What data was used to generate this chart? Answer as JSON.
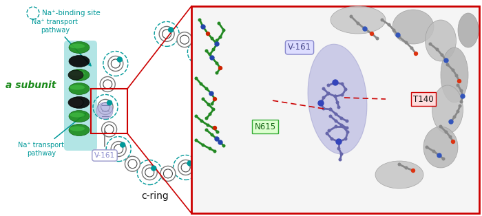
{
  "fig_width": 7.0,
  "fig_height": 3.14,
  "dpi": 100,
  "bg_color": "#ffffff",
  "teal_color": "#009999",
  "green_color": "#1a8a1a",
  "black_color": "#111111",
  "red_color": "#cc0000",
  "legend_text": "Na⁺-binding site",
  "na_transport_upper_text": "Na⁺ transport\npathway",
  "na_transport_lower_text": "Na⁺ transport\npathway",
  "a_subunit_text": "a subunit",
  "cring_text": "c-ring",
  "inset_v161_text": "V-161",
  "inset_t140_text": "T140",
  "inset_n615_text": "N615"
}
